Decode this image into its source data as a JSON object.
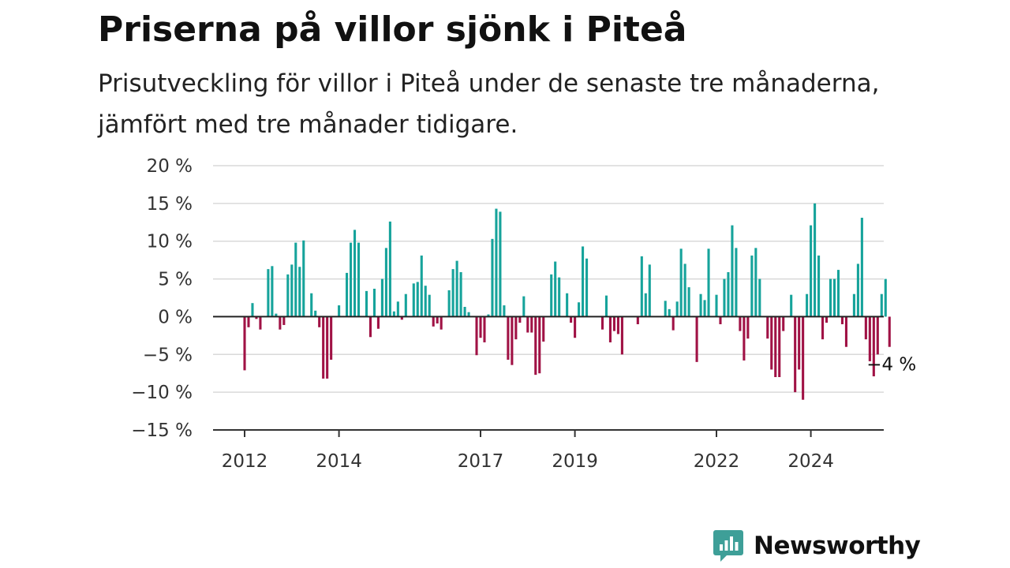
{
  "title": "Priserna på villor sjönk i Piteå",
  "subtitle": "Prisutveckling för villor i Piteå under de senaste tre månaderna, jämfört med tre månader tidigare.",
  "brand": {
    "name": "Newsworthy",
    "logo_icon": "bar-chart-speech-bubble-icon"
  },
  "colors": {
    "positive": "#16a39b",
    "negative": "#a01245",
    "grid": "#d9d9d9",
    "axis": "#333333",
    "brand": "#3e9f98"
  },
  "chart_data": {
    "type": "bar",
    "title": "Priserna på villor sjönk i Piteå",
    "xlabel": "",
    "ylabel": "",
    "ylim": [
      -15,
      20
    ],
    "yticks": [
      -15,
      -10,
      -5,
      0,
      5,
      10,
      15,
      20
    ],
    "ytick_labels": [
      "−15 %",
      "−10 %",
      "−5 %",
      "0 %",
      "5 %",
      "10 %",
      "15 %",
      "20 %"
    ],
    "xtick_labels": [
      {
        "label": "2012",
        "year": 2012.0
      },
      {
        "label": "2014",
        "year": 2014.0
      },
      {
        "label": "2017",
        "year": 2017.0
      },
      {
        "label": "2019",
        "year": 2019.0
      },
      {
        "label": "2022",
        "year": 2022.0
      },
      {
        "label": "2024",
        "year": 2024.0
      }
    ],
    "grid": true,
    "x_start_year": 2012.0,
    "x_step_months": 1,
    "values": [
      -7.1,
      -1.4,
      1.8,
      -0.3,
      -1.7,
      0,
      6.3,
      6.7,
      0.4,
      -1.7,
      -1.1,
      5.6,
      6.9,
      9.8,
      6.6,
      10.1,
      0,
      3.1,
      0.8,
      -1.4,
      -8.2,
      -8.2,
      -5.7,
      0,
      1.5,
      0,
      5.8,
      9.8,
      11.5,
      9.8,
      0,
      3.4,
      -2.7,
      3.7,
      -1.6,
      5,
      9.1,
      12.6,
      0.7,
      2,
      -0.4,
      3.0,
      0,
      4.4,
      4.6,
      8.1,
      4.1,
      2.9,
      -1.3,
      -0.9,
      -1.7,
      0,
      3.5,
      6.3,
      7.4,
      5.9,
      1.3,
      0.6,
      0,
      -5.1,
      -2.8,
      -3.4,
      0.3,
      10.3,
      14.3,
      13.9,
      1.5,
      -5.7,
      -6.4,
      -3.0,
      -0.8,
      2.7,
      -2.1,
      -2.1,
      -7.7,
      -7.5,
      -3.3,
      0,
      5.6,
      7.3,
      5.2,
      0,
      3.1,
      -0.8,
      -2.8,
      1.9,
      9.3,
      7.7,
      0,
      0,
      0,
      -1.7,
      2.8,
      -3.4,
      -1.9,
      -2.3,
      -5.0,
      0,
      0,
      0,
      -1.0,
      8.0,
      3.1,
      6.9,
      0,
      0,
      0,
      2.1,
      1,
      -1.8,
      2.0,
      9,
      7.0,
      3.9,
      0,
      -6,
      3.0,
      2.2,
      9.0,
      0,
      2.9,
      -1.0,
      5.0,
      5.9,
      12.1,
      9.1,
      -1.9,
      -5.8,
      -2.9,
      8.1,
      9.1,
      5.0,
      0,
      -2.9,
      -7.0,
      -8.0,
      -8.0,
      -1.9,
      0,
      2.9,
      -10.0,
      -7.0,
      -11,
      3.0,
      12.1,
      15.0,
      8.1,
      -3.0,
      -0.8,
      5.0,
      5,
      6.2,
      -1.0,
      -4.0,
      0,
      3.0,
      7.0,
      13.1,
      -3.0,
      -5.9,
      -7.9,
      -5.0,
      3.0,
      5.0,
      -4.0
    ],
    "annotation": {
      "label": "−4 %",
      "value": -4
    }
  }
}
